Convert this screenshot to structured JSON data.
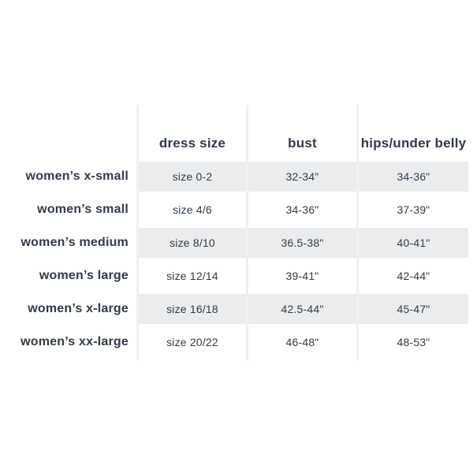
{
  "size_chart": {
    "headers": {
      "label": "",
      "dress_size": "dress size",
      "bust": "bust",
      "hips": "hips/under belly"
    },
    "rows": [
      {
        "label": "women’s x-small",
        "dress_size": "size 0-2",
        "bust": "32-34\"",
        "hips": "34-36\""
      },
      {
        "label": "women’s small",
        "dress_size": "size 4/6",
        "bust": "34-36\"",
        "hips": "37-39\""
      },
      {
        "label": "women’s medium",
        "dress_size": "size 8/10",
        "bust": "36.5-38\"",
        "hips": "40-41\""
      },
      {
        "label": "women’s large",
        "dress_size": "size 12/14",
        "bust": "39-41\"",
        "hips": "42-44\""
      },
      {
        "label": "women’s x-large",
        "dress_size": "size 16/18",
        "bust": "42.5-44\"",
        "hips": "45-47\""
      },
      {
        "label": "women’s xx-large",
        "dress_size": "size 20/22",
        "bust": "46-48\"",
        "hips": "48-53\""
      }
    ],
    "colors": {
      "background": "#ffffff",
      "stripe": "#ebeced",
      "divider": "#f0f0f2",
      "text": "#333947"
    }
  }
}
